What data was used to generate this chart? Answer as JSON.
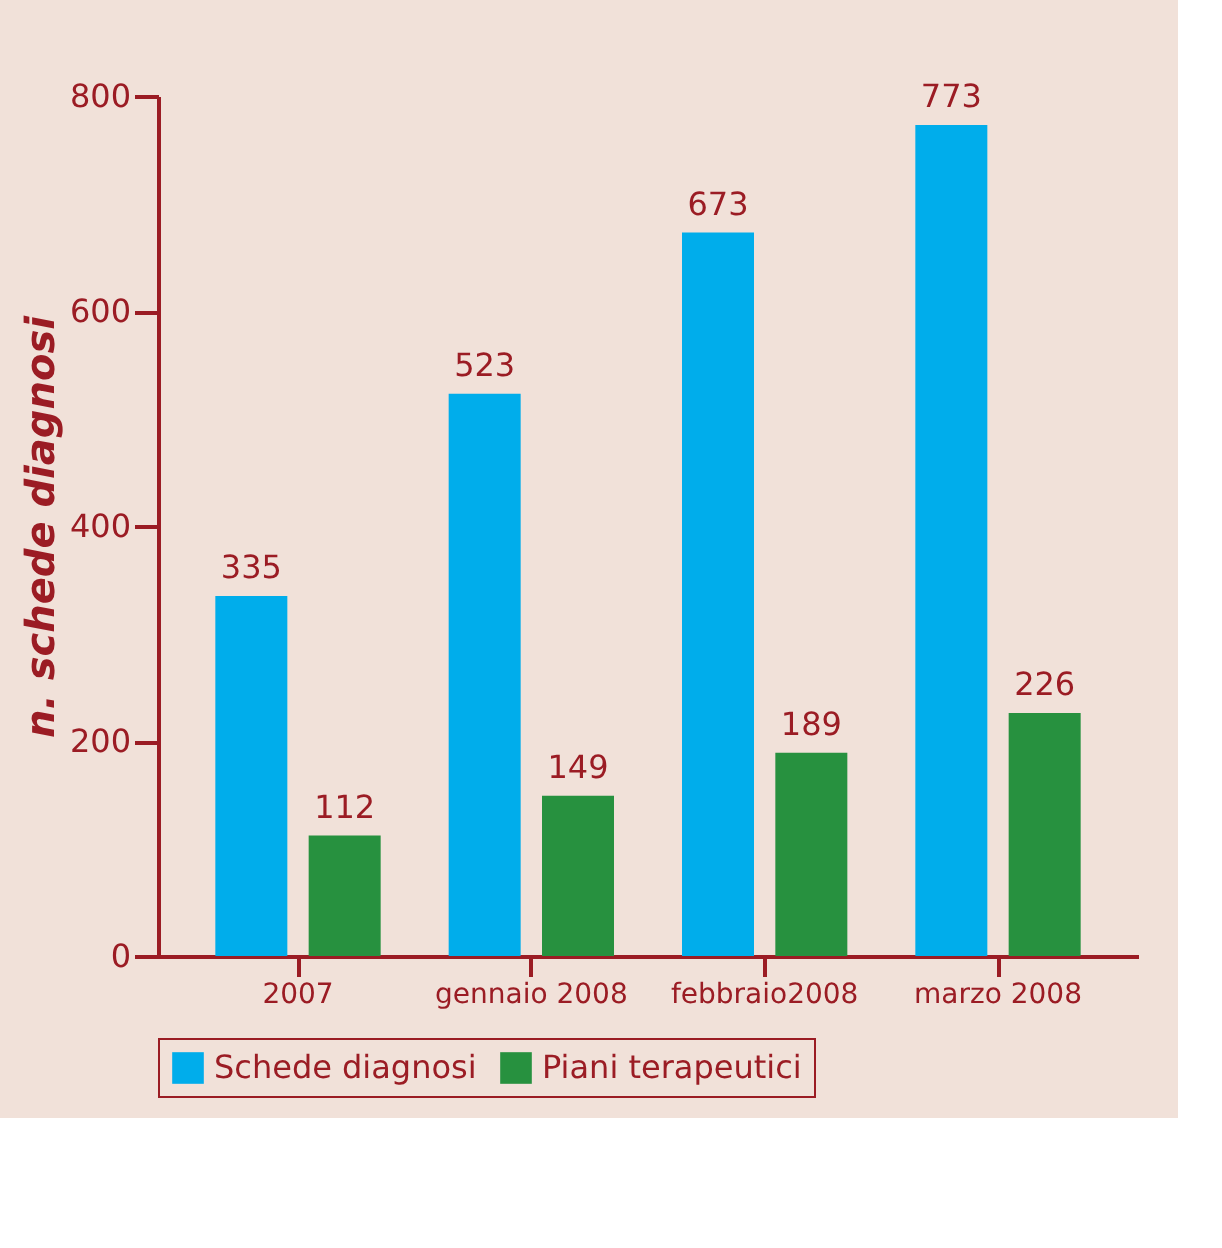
{
  "chart_data": {
    "type": "bar",
    "ylabel": "n. schede diagnosi",
    "categories": [
      "2007",
      "gennaio 2008",
      "febbraio2008",
      "marzo 2008"
    ],
    "series": [
      {
        "name": "Schede diagnosi",
        "color": "#00adeb",
        "values": [
          335,
          523,
          673,
          773
        ]
      },
      {
        "name": "Piani terapeutici",
        "color": "#27913f",
        "values": [
          112,
          149,
          189,
          226
        ]
      }
    ],
    "ylim": [
      0,
      800
    ],
    "yticks": [
      0,
      200,
      400,
      600,
      800
    ],
    "data_labels": true,
    "grid": false,
    "legend": "bottom"
  }
}
